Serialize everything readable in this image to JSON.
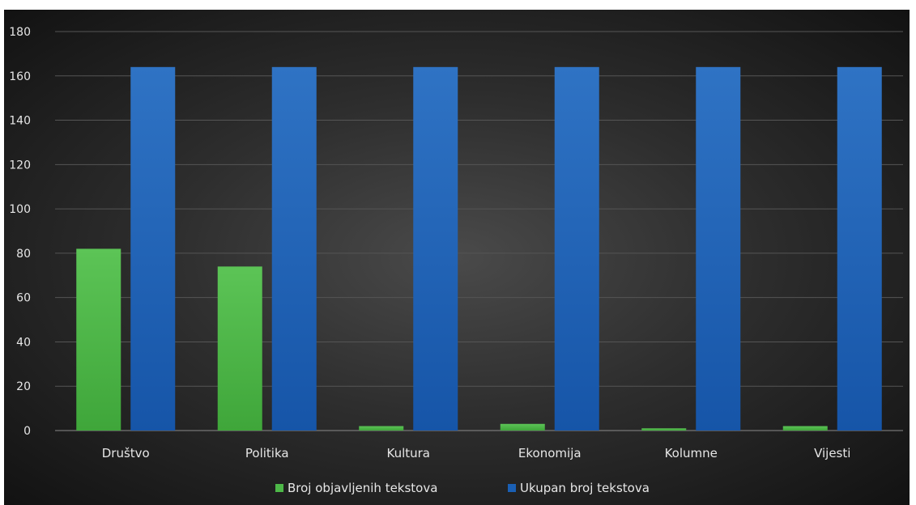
{
  "chart_data": {
    "type": "bar",
    "title": "",
    "xlabel": "",
    "ylabel": "",
    "categories": [
      "Društvo",
      "Politika",
      "Kultura",
      "Ekonomija",
      "Kolumne",
      "Vijesti"
    ],
    "series": [
      {
        "name": "Broj objavljenih tekstova",
        "values": [
          82,
          74,
          2,
          3,
          1,
          2
        ],
        "color": "#4db848"
      },
      {
        "name": "Ukupan broj tekstova",
        "values": [
          164,
          164,
          164,
          164,
          164,
          164
        ],
        "color": "#1a5fb4"
      }
    ],
    "ylim": [
      0,
      180
    ],
    "yticks": [
      0,
      20,
      40,
      60,
      80,
      100,
      120,
      140,
      160,
      180
    ],
    "grid": true,
    "legend_position": "bottom"
  }
}
